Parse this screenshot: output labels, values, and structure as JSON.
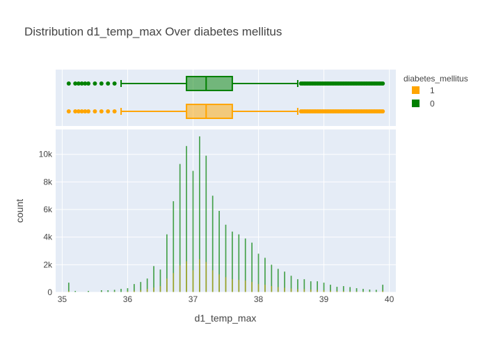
{
  "chart_data": {
    "type": "histogram",
    "title": "Distribution d1_temp_max Over diabetes mellitus",
    "xlabel": "d1_temp_max",
    "ylabel": "count",
    "xlim": [
      34.9,
      40.1
    ],
    "ylim": [
      0,
      11800
    ],
    "x_ticks": [
      35,
      36,
      37,
      38,
      39,
      40
    ],
    "y_ticks": [
      0,
      2000,
      4000,
      6000,
      8000,
      10000
    ],
    "y_tick_labels": [
      "0",
      "2k",
      "4k",
      "6k",
      "8k",
      "10k"
    ],
    "grid": true,
    "legend": {
      "title": "diabetes_mellitus",
      "placement": "right",
      "items": [
        {
          "label": "1",
          "color": "#FFA500"
        },
        {
          "label": "0",
          "color": "#008000"
        }
      ]
    },
    "series": [
      {
        "name": "0",
        "color": "#008000",
        "bins": [
          [
            35.1,
            700
          ],
          [
            35.2,
            100
          ],
          [
            35.4,
            100
          ],
          [
            35.6,
            150
          ],
          [
            35.7,
            150
          ],
          [
            35.8,
            180
          ],
          [
            35.9,
            250
          ],
          [
            36.0,
            300
          ],
          [
            36.1,
            600
          ],
          [
            36.2,
            750
          ],
          [
            36.3,
            1000
          ],
          [
            36.4,
            1900
          ],
          [
            36.5,
            1650
          ],
          [
            36.6,
            4200
          ],
          [
            36.7,
            6600
          ],
          [
            36.8,
            9300
          ],
          [
            36.9,
            10600
          ],
          [
            37.0,
            8800
          ],
          [
            37.1,
            11300
          ],
          [
            37.2,
            9900
          ],
          [
            37.3,
            7000
          ],
          [
            37.4,
            5900
          ],
          [
            37.5,
            4900
          ],
          [
            37.6,
            4400
          ],
          [
            37.7,
            4200
          ],
          [
            37.8,
            3900
          ],
          [
            37.9,
            3600
          ],
          [
            38.0,
            2800
          ],
          [
            38.1,
            2500
          ],
          [
            38.2,
            2000
          ],
          [
            38.3,
            1700
          ],
          [
            38.4,
            1500
          ],
          [
            38.5,
            1200
          ],
          [
            38.6,
            950
          ],
          [
            38.7,
            950
          ],
          [
            38.8,
            800
          ],
          [
            38.9,
            800
          ],
          [
            39.0,
            700
          ],
          [
            39.1,
            550
          ],
          [
            39.2,
            400
          ],
          [
            39.3,
            450
          ],
          [
            39.4,
            380
          ],
          [
            39.5,
            300
          ],
          [
            39.6,
            250
          ],
          [
            39.7,
            200
          ],
          [
            39.8,
            180
          ],
          [
            39.9,
            550
          ]
        ]
      },
      {
        "name": "1",
        "color": "#FFA500",
        "bins": [
          [
            35.1,
            100
          ],
          [
            35.4,
            30
          ],
          [
            35.6,
            40
          ],
          [
            35.8,
            50
          ],
          [
            36.0,
            80
          ],
          [
            36.1,
            120
          ],
          [
            36.2,
            160
          ],
          [
            36.3,
            250
          ],
          [
            36.4,
            350
          ],
          [
            36.5,
            450
          ],
          [
            36.6,
            1000
          ],
          [
            36.7,
            1400
          ],
          [
            36.8,
            1950
          ],
          [
            36.9,
            2250
          ],
          [
            37.0,
            1600
          ],
          [
            37.1,
            2400
          ],
          [
            37.2,
            2200
          ],
          [
            37.3,
            1600
          ],
          [
            37.4,
            1300
          ],
          [
            37.5,
            1100
          ],
          [
            37.6,
            950
          ],
          [
            37.7,
            900
          ],
          [
            37.8,
            850
          ],
          [
            37.9,
            750
          ],
          [
            38.0,
            600
          ],
          [
            38.1,
            550
          ],
          [
            38.2,
            450
          ],
          [
            38.3,
            380
          ],
          [
            38.4,
            330
          ],
          [
            38.5,
            280
          ],
          [
            38.6,
            230
          ],
          [
            38.7,
            230
          ],
          [
            38.8,
            200
          ],
          [
            38.9,
            180
          ],
          [
            39.0,
            150
          ],
          [
            39.1,
            120
          ],
          [
            39.2,
            100
          ],
          [
            39.3,
            100
          ],
          [
            39.4,
            80
          ],
          [
            39.5,
            70
          ],
          [
            39.6,
            60
          ],
          [
            39.7,
            50
          ],
          [
            39.8,
            40
          ],
          [
            39.9,
            110
          ]
        ]
      }
    ],
    "box": [
      {
        "name": "0",
        "color": "#008000",
        "fill": "rgba(0,128,0,0.5)",
        "lower_fence": 35.9,
        "q1": 36.9,
        "median": 37.2,
        "q3": 37.6,
        "upper_fence": 38.6,
        "low_outliers": [
          35.1,
          35.2,
          35.25,
          35.3,
          35.35,
          35.4,
          35.5,
          35.6,
          35.7,
          35.8
        ],
        "high_outliers_range": [
          38.65,
          39.9
        ]
      },
      {
        "name": "1",
        "color": "#FFA500",
        "fill": "rgba(255,165,0,0.5)",
        "lower_fence": 35.9,
        "q1": 36.9,
        "median": 37.2,
        "q3": 37.6,
        "upper_fence": 38.6,
        "low_outliers": [
          35.1,
          35.2,
          35.25,
          35.3,
          35.35,
          35.4,
          35.5,
          35.6,
          35.7,
          35.8
        ],
        "high_outliers_range": [
          38.65,
          39.9
        ]
      }
    ]
  }
}
